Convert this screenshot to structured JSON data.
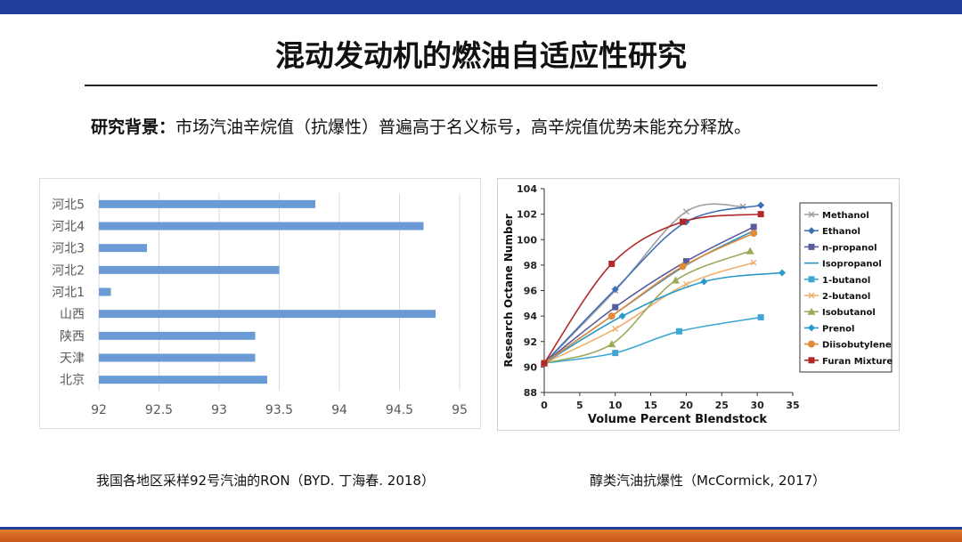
{
  "slide": {
    "title": "混动发动机的燃油自适应性研究",
    "background_label": "研究背景：",
    "background_text": "市场汽油辛烷值（抗爆性）普遍高于名义标号，高辛烷值优势未能充分释放。",
    "caption_left": "我国各地区采样92号汽油的RON（BYD. 丁海春. 2018）",
    "caption_right": "醇类汽油抗爆性（McCormick, 2017）",
    "colors": {
      "top_bar": "#1f3f9a",
      "bottom_bar": "#d4661f",
      "bar_fill": "#6b9bd6"
    }
  },
  "chart_data": [
    {
      "type": "bar",
      "orientation": "horizontal",
      "categories": [
        "河北5",
        "河北4",
        "河北3",
        "河北2",
        "河北1",
        "山西",
        "陕西",
        "天津",
        "北京"
      ],
      "values": [
        93.8,
        94.7,
        92.4,
        93.5,
        92.1,
        94.8,
        93.3,
        93.3,
        93.4
      ],
      "xlim": [
        92,
        95
      ],
      "xticks": [
        "92",
        "92.5",
        "93",
        "93.5",
        "94",
        "94.5",
        "95"
      ],
      "grid": "vertical",
      "color": "#6b9bd6"
    },
    {
      "type": "line",
      "xlabel": "Volume Percent Blendstock",
      "ylabel": "Research Octane Number",
      "xlim": [
        0,
        35
      ],
      "ylim": [
        88,
        104
      ],
      "xticks": [
        "0",
        "5",
        "10",
        "15",
        "20",
        "25",
        "30",
        "35"
      ],
      "yticks": [
        "88",
        "90",
        "92",
        "94",
        "96",
        "98",
        "100",
        "102",
        "104"
      ],
      "legend_position": "right",
      "series": [
        {
          "name": "Methanol",
          "color": "#a0a0a0",
          "marker": "x",
          "x": [
            0,
            10,
            20,
            28
          ],
          "y": [
            90.3,
            96.0,
            102.2,
            102.6
          ]
        },
        {
          "name": "Ethanol",
          "color": "#3f6fb5",
          "marker": "diamond",
          "x": [
            0,
            10,
            20,
            30.5
          ],
          "y": [
            90.3,
            96.1,
            101.4,
            102.7
          ]
        },
        {
          "name": "n-propanol",
          "color": "#5a5aa0",
          "marker": "square",
          "x": [
            0,
            10,
            20,
            29.5
          ],
          "y": [
            90.3,
            94.7,
            98.3,
            101.0
          ]
        },
        {
          "name": "Isopropanol",
          "color": "#2e8fc4",
          "marker": "none",
          "x": [
            0,
            10,
            20,
            29.5
          ],
          "y": [
            90.3,
            94.2,
            98.0,
            100.7
          ]
        },
        {
          "name": "1-butanol",
          "color": "#3fa7d6",
          "marker": "square",
          "x": [
            0,
            10,
            19,
            30.5
          ],
          "y": [
            90.3,
            91.1,
            92.8,
            93.9
          ]
        },
        {
          "name": "2-butanol",
          "color": "#f0b070",
          "marker": "x",
          "x": [
            0,
            10,
            20,
            29.5
          ],
          "y": [
            90.3,
            93.0,
            96.5,
            98.2
          ]
        },
        {
          "name": "Isobutanol",
          "color": "#9aaa5a",
          "marker": "triangle",
          "x": [
            0,
            9.5,
            18.5,
            29
          ],
          "y": [
            90.3,
            91.8,
            96.8,
            99.1
          ]
        },
        {
          "name": "Prenol",
          "color": "#2a9ac8",
          "marker": "diamond",
          "x": [
            0,
            11,
            22.5,
            33.5
          ],
          "y": [
            90.3,
            94.0,
            96.7,
            97.4
          ]
        },
        {
          "name": "Diisobutylene",
          "color": "#e08a3a",
          "marker": "circle",
          "x": [
            0,
            9.5,
            19.5,
            29.5
          ],
          "y": [
            90.3,
            94.0,
            97.9,
            100.5
          ]
        },
        {
          "name": "Furan Mixture",
          "color": "#b02a2a",
          "marker": "square",
          "x": [
            0,
            9.5,
            19.5,
            30.5
          ],
          "y": [
            90.3,
            98.1,
            101.4,
            102.0
          ]
        }
      ]
    }
  ]
}
